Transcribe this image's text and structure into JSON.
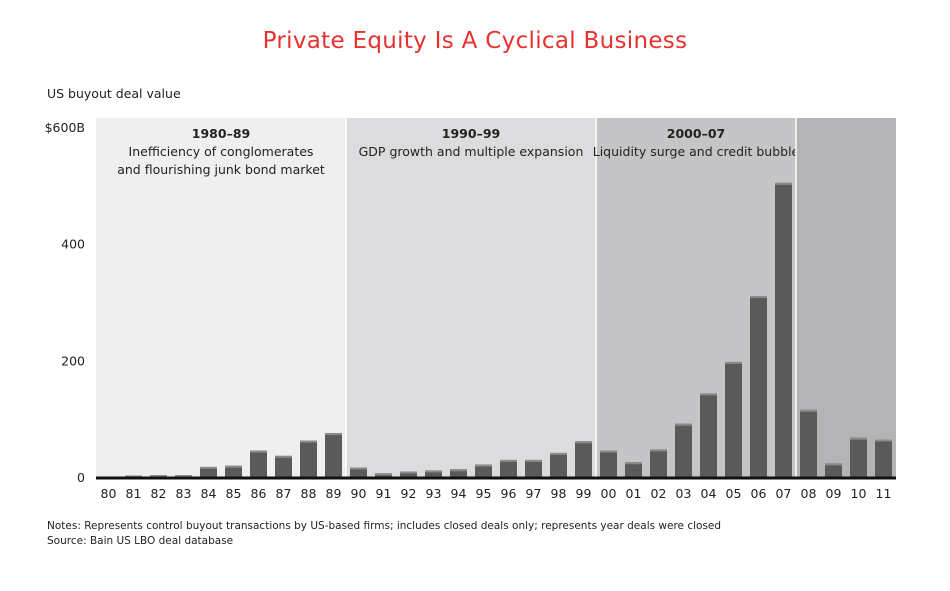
{
  "title": "Private Equity Is A Cyclical Business",
  "ylabel": "US buyout deal value",
  "notes": "Notes: Represents control buyout transactions by US-based firms; includes closed deals only; represents year deals were closed",
  "source": "Source: Bain US LBO deal database",
  "colors": {
    "title": "#e8312f",
    "bar": "#5a5a5a",
    "bar_top": "#8a8a8a",
    "era_1980s": "#efeff0",
    "era_1990s": "#dcdcde",
    "era_2000s": "#c5c5c7",
    "era_post": "#b4b4b6",
    "axis": "#111111"
  },
  "chart_data": {
    "type": "bar",
    "title": "Private Equity Is A Cyclical Business",
    "ylabel": "US buyout deal value",
    "ylim": [
      0,
      600
    ],
    "yticks": [
      {
        "value": 0,
        "label": "0"
      },
      {
        "value": 200,
        "label": "200"
      },
      {
        "value": 400,
        "label": "400"
      },
      {
        "value": 600,
        "label": "$600B"
      }
    ],
    "categories": [
      "80",
      "81",
      "82",
      "83",
      "84",
      "85",
      "86",
      "87",
      "88",
      "89",
      "90",
      "91",
      "92",
      "93",
      "94",
      "95",
      "96",
      "97",
      "98",
      "99",
      "00",
      "01",
      "02",
      "03",
      "04",
      "05",
      "06",
      "07",
      "08",
      "09",
      "10",
      "11"
    ],
    "values": [
      2,
      4,
      5,
      5,
      19,
      21,
      47,
      38,
      64,
      77,
      18,
      8,
      11,
      13,
      15,
      23,
      31,
      31,
      43,
      63,
      47,
      27,
      49,
      93,
      145,
      199,
      312,
      506,
      117,
      25,
      69,
      66
    ],
    "eras": [
      {
        "years": "1980–89",
        "desc1": "Inefficiency of conglomerates",
        "desc2": "and flourishing junk bond market",
        "start": 0,
        "end": 9
      },
      {
        "years": "1990–99",
        "desc1": "GDP growth and multiple expansion",
        "desc2": "",
        "start": 10,
        "end": 19
      },
      {
        "years": "2000–07",
        "desc1": "Liquidity surge and credit bubble",
        "desc2": "",
        "start": 20,
        "end": 27
      },
      {
        "years": "",
        "desc1": "",
        "desc2": "",
        "start": 28,
        "end": 31
      }
    ]
  }
}
